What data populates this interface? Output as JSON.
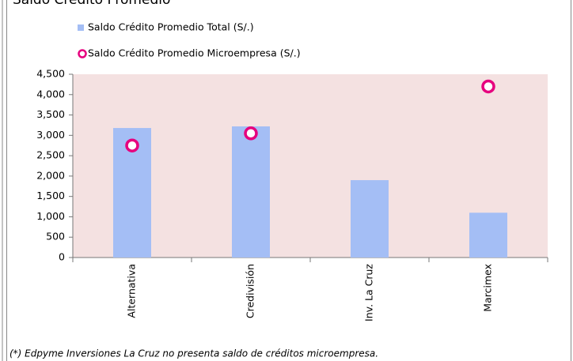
{
  "chart_data": {
    "type": "bar",
    "title": "Saldo Crédito Promedio",
    "categories": [
      "Alternativa",
      "Credivisión",
      "Inv. La Cruz",
      "Marcimex"
    ],
    "series": [
      {
        "name": "Saldo Crédito Promedio Total (S/.)",
        "type": "bar",
        "color": "#a4bef5",
        "values": [
          3180,
          3220,
          1900,
          1100
        ]
      },
      {
        "name": "Saldo Crédito Promedio Microempresa (S/.)",
        "type": "scatter",
        "color": "#e6007e",
        "values": [
          2750,
          3050,
          null,
          4200
        ]
      }
    ],
    "ylim": [
      0,
      4500
    ],
    "yticks": [
      0,
      500,
      {
        "value": 1000,
        "label": "1,000"
      },
      {
        "value": 1500,
        "label": "1,500"
      },
      {
        "value": 2000,
        "label": "2,000"
      },
      {
        "value": 2500,
        "label": "2,500"
      },
      {
        "value": 3000,
        "label": "3,000"
      },
      {
        "value": 3500,
        "label": "3,500"
      },
      {
        "value": 4000,
        "label": "4,000"
      },
      {
        "value": 4500,
        "label": "4,500"
      }
    ],
    "grid": false,
    "plot_background": "#f4e1e1",
    "note": "(*) Edpyme Inversiones La Cruz no presenta saldo de créditos microempresa."
  }
}
